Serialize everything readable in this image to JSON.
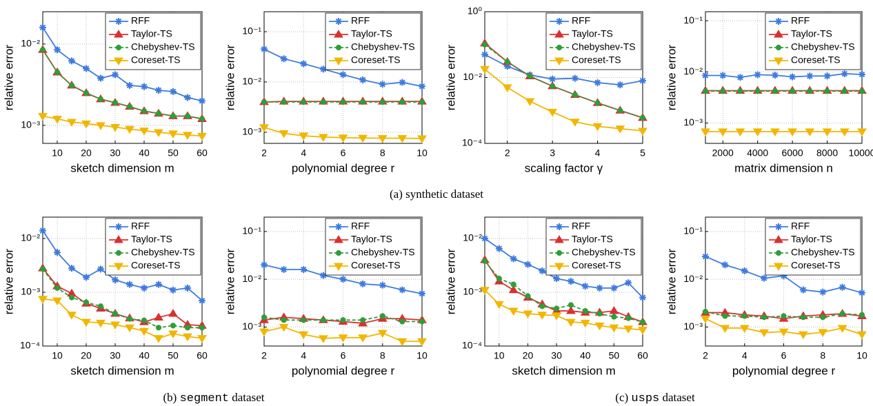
{
  "chart_data": [
    {
      "type": "line",
      "xlabel": "sketch dimension m",
      "ylabel": "relative error",
      "log_y": true,
      "grid": true,
      "legend": "upper right",
      "x": [
        5,
        10,
        15,
        20,
        25,
        30,
        35,
        40,
        45,
        50,
        55,
        60
      ],
      "xlim": [
        5,
        60
      ],
      "xticks": [
        10,
        20,
        30,
        40,
        50,
        60
      ],
      "ylim": [
        0.0006,
        0.025
      ],
      "yticks": [
        {
          "value": 0.001,
          "label": "10⁻³"
        },
        {
          "value": 0.01,
          "label": "10⁻²"
        }
      ],
      "series": [
        {
          "name": "RFF",
          "color": "#3d7be0",
          "marker": "star",
          "values": [
            0.016,
            0.0085,
            0.0062,
            0.005,
            0.0038,
            0.0042,
            0.0031,
            0.003,
            0.0027,
            0.0026,
            0.0022,
            0.002
          ]
        },
        {
          "name": "Taylor-TS",
          "color": "#d93030",
          "marker": "tri-up",
          "values": [
            0.0085,
            0.0045,
            0.0031,
            0.0025,
            0.0021,
            0.0019,
            0.0017,
            0.0015,
            0.0014,
            0.0013,
            0.0013,
            0.0012
          ]
        },
        {
          "name": "Chebyshev-TS",
          "color": "#2e9e3a",
          "marker": "circle",
          "dash": true,
          "values": [
            0.0085,
            0.0045,
            0.0031,
            0.0025,
            0.0021,
            0.0019,
            0.0017,
            0.0015,
            0.0014,
            0.0013,
            0.0013,
            0.0012
          ]
        },
        {
          "name": "Coreset-TS",
          "color": "#f2b600",
          "marker": "tri-down",
          "values": [
            0.0013,
            0.0012,
            0.0011,
            0.00105,
            0.001,
            0.00095,
            0.0009,
            0.00086,
            0.00082,
            0.00079,
            0.00076,
            0.00074
          ]
        }
      ]
    },
    {
      "type": "line",
      "xlabel": "polynomial degree r",
      "ylabel": "relative error",
      "log_y": true,
      "grid": true,
      "legend": "upper right",
      "x": [
        2,
        3,
        4,
        5,
        6,
        7,
        8,
        9,
        10
      ],
      "xlim": [
        2,
        10
      ],
      "xticks": [
        2,
        4,
        6,
        8,
        10
      ],
      "ylim": [
        0.0006,
        0.25
      ],
      "yticks": [
        {
          "value": 0.001,
          "label": "10⁻³"
        },
        {
          "value": 0.01,
          "label": "10⁻²"
        },
        {
          "value": 0.1,
          "label": "10⁻¹"
        }
      ],
      "series": [
        {
          "name": "RFF",
          "color": "#3d7be0",
          "marker": "star",
          "values": [
            0.045,
            0.029,
            0.023,
            0.018,
            0.014,
            0.011,
            0.009,
            0.0098,
            0.0082
          ]
        },
        {
          "name": "Taylor-TS",
          "color": "#d93030",
          "marker": "tri-up",
          "values": [
            0.004,
            0.0041,
            0.0041,
            0.0041,
            0.0041,
            0.0041,
            0.0041,
            0.0041,
            0.0041
          ]
        },
        {
          "name": "Chebyshev-TS",
          "color": "#2e9e3a",
          "marker": "circle",
          "dash": true,
          "values": [
            0.004,
            0.004,
            0.004,
            0.004,
            0.004,
            0.004,
            0.004,
            0.004,
            0.004
          ]
        },
        {
          "name": "Coreset-TS",
          "color": "#f2b600",
          "marker": "tri-down",
          "values": [
            0.00125,
            0.00095,
            0.00085,
            0.0008,
            0.00078,
            0.00077,
            0.00076,
            0.00076,
            0.00075
          ]
        }
      ]
    },
    {
      "type": "line",
      "xlabel": "scaling factor γ",
      "ylabel": "relative error",
      "log_y": true,
      "grid": true,
      "legend": "upper right",
      "x": [
        1.5,
        2,
        2.5,
        3,
        3.5,
        4,
        4.5,
        5
      ],
      "xlim": [
        1.5,
        5
      ],
      "xticks": [
        2,
        3,
        4,
        5
      ],
      "ylim": [
        0.0001,
        1
      ],
      "yticks": [
        {
          "value": 0.0001,
          "label": "10⁻⁴"
        },
        {
          "value": 0.01,
          "label": "10⁻²"
        },
        {
          "value": 1,
          "label": "10⁰"
        }
      ],
      "series": [
        {
          "name": "RFF",
          "color": "#3d7be0",
          "marker": "star",
          "values": [
            0.05,
            0.022,
            0.012,
            0.009,
            0.0095,
            0.007,
            0.006,
            0.008
          ]
        },
        {
          "name": "Taylor-TS",
          "color": "#d93030",
          "marker": "tri-up",
          "values": [
            0.11,
            0.03,
            0.011,
            0.0055,
            0.003,
            0.0017,
            0.001,
            0.0006
          ]
        },
        {
          "name": "Chebyshev-TS",
          "color": "#2e9e3a",
          "marker": "circle",
          "dash": true,
          "values": [
            0.1,
            0.03,
            0.011,
            0.0055,
            0.003,
            0.0017,
            0.001,
            0.0006
          ]
        },
        {
          "name": "Coreset-TS",
          "color": "#f2b600",
          "marker": "tri-down",
          "values": [
            0.018,
            0.005,
            0.0019,
            0.0009,
            0.00045,
            0.00033,
            0.00028,
            0.00024
          ]
        }
      ]
    },
    {
      "type": "line",
      "xlabel": "matrix dimension n",
      "ylabel": "relative error",
      "log_y": true,
      "grid": true,
      "legend": "upper right",
      "x": [
        1000,
        2000,
        3000,
        4000,
        5000,
        6000,
        7000,
        8000,
        9000,
        10000
      ],
      "xlim": [
        1000,
        10000
      ],
      "xticks": [
        2000,
        4000,
        6000,
        8000,
        10000
      ],
      "ylim": [
        0.0004,
        0.15
      ],
      "yticks": [
        {
          "value": 0.001,
          "label": "10⁻³"
        },
        {
          "value": 0.01,
          "label": "10⁻²"
        },
        {
          "value": 0.1,
          "label": "10⁻¹"
        }
      ],
      "series": [
        {
          "name": "RFF",
          "color": "#3d7be0",
          "marker": "star",
          "values": [
            0.0085,
            0.0085,
            0.0078,
            0.0088,
            0.0086,
            0.008,
            0.0083,
            0.0083,
            0.0092,
            0.0089
          ]
        },
        {
          "name": "Taylor-TS",
          "color": "#d93030",
          "marker": "tri-up",
          "values": [
            0.0043,
            0.0043,
            0.0043,
            0.0043,
            0.0043,
            0.0043,
            0.0043,
            0.0043,
            0.0043,
            0.0043
          ]
        },
        {
          "name": "Chebyshev-TS",
          "color": "#2e9e3a",
          "marker": "circle",
          "dash": true,
          "values": [
            0.0042,
            0.0042,
            0.0042,
            0.0042,
            0.0042,
            0.0042,
            0.0042,
            0.0042,
            0.0042,
            0.0042
          ]
        },
        {
          "name": "Coreset-TS",
          "color": "#f2b600",
          "marker": "tri-down",
          "values": [
            0.00068,
            0.00068,
            0.00068,
            0.00068,
            0.00068,
            0.00068,
            0.00068,
            0.00068,
            0.00068,
            0.00068
          ]
        }
      ]
    },
    {
      "type": "line",
      "xlabel": "sketch dimension m",
      "ylabel": "relative error",
      "log_y": true,
      "grid": true,
      "legend": "upper right",
      "x": [
        5,
        10,
        15,
        20,
        25,
        30,
        35,
        40,
        45,
        50,
        55,
        60
      ],
      "xlim": [
        5,
        60
      ],
      "xticks": [
        10,
        20,
        30,
        40,
        50,
        60
      ],
      "ylim": [
        0.0001,
        0.025
      ],
      "yticks": [
        {
          "value": 0.0001,
          "label": "10⁻⁴"
        },
        {
          "value": 0.001,
          "label": "10⁻³"
        },
        {
          "value": 0.01,
          "label": "10⁻²"
        }
      ],
      "series": [
        {
          "name": "RFF",
          "color": "#3d7be0",
          "marker": "star",
          "values": [
            0.014,
            0.0055,
            0.0028,
            0.0019,
            0.0027,
            0.0017,
            0.0014,
            0.0012,
            0.0014,
            0.0011,
            0.0012,
            0.0007
          ]
        },
        {
          "name": "Taylor-TS",
          "color": "#d93030",
          "marker": "tri-up",
          "values": [
            0.0028,
            0.0013,
            0.00095,
            0.00062,
            0.0005,
            0.0004,
            0.00033,
            0.00028,
            0.00034,
            0.0004,
            0.00025,
            0.00024
          ]
        },
        {
          "name": "Chebyshev-TS",
          "color": "#2e9e3a",
          "marker": "circle",
          "dash": true,
          "values": [
            0.0027,
            0.0012,
            0.0008,
            0.00065,
            0.00055,
            0.0004,
            0.00032,
            0.0003,
            0.00022,
            0.00024,
            0.00022,
            0.00022
          ]
        },
        {
          "name": "Coreset-TS",
          "color": "#f2b600",
          "marker": "tri-down",
          "values": [
            0.00075,
            0.0007,
            0.00038,
            0.00028,
            0.00027,
            0.00025,
            0.00022,
            0.00019,
            0.00014,
            0.00017,
            0.00015,
            0.00014
          ]
        }
      ]
    },
    {
      "type": "line",
      "xlabel": "polynomial degree r",
      "ylabel": "relative error",
      "log_y": true,
      "grid": true,
      "legend": "upper right",
      "x": [
        2,
        3,
        4,
        5,
        6,
        7,
        8,
        9,
        10
      ],
      "xlim": [
        2,
        10
      ],
      "xticks": [
        2,
        4,
        6,
        8,
        10
      ],
      "ylim": [
        0.0004,
        0.2
      ],
      "yticks": [
        {
          "value": 0.001,
          "label": "10⁻³"
        },
        {
          "value": 0.01,
          "label": "10⁻²"
        },
        {
          "value": 0.1,
          "label": "10⁻¹"
        }
      ],
      "series": [
        {
          "name": "RFF",
          "color": "#3d7be0",
          "marker": "star",
          "values": [
            0.02,
            0.016,
            0.016,
            0.012,
            0.01,
            0.008,
            0.0075,
            0.006,
            0.005
          ]
        },
        {
          "name": "Taylor-TS",
          "color": "#d93030",
          "marker": "tri-up",
          "values": [
            0.0014,
            0.0016,
            0.0015,
            0.0014,
            0.0013,
            0.0012,
            0.0015,
            0.0015,
            0.0014
          ]
        },
        {
          "name": "Chebyshev-TS",
          "color": "#2e9e3a",
          "marker": "circle",
          "dash": true,
          "values": [
            0.0016,
            0.0014,
            0.0014,
            0.0014,
            0.0014,
            0.0014,
            0.0017,
            0.0013,
            0.0013
          ]
        },
        {
          "name": "Coreset-TS",
          "color": "#f2b600",
          "marker": "tri-down",
          "values": [
            0.0008,
            0.001,
            0.0007,
            0.00058,
            0.0006,
            0.0006,
            0.00075,
            0.0005,
            0.0005
          ]
        }
      ]
    },
    {
      "type": "line",
      "xlabel": "sketch dimension m",
      "ylabel": "relative error",
      "log_y": true,
      "grid": true,
      "legend": "upper right",
      "x": [
        5,
        10,
        15,
        20,
        25,
        30,
        35,
        40,
        45,
        50,
        55,
        60
      ],
      "xlim": [
        5,
        60
      ],
      "xticks": [
        10,
        20,
        30,
        40,
        50,
        60
      ],
      "ylim": [
        0.0001,
        0.025
      ],
      "yticks": [
        {
          "value": 0.0001,
          "label": "10⁻⁴"
        },
        {
          "value": 0.001,
          "label": "10⁻³"
        },
        {
          "value": 0.01,
          "label": "10⁻²"
        }
      ],
      "series": [
        {
          "name": "RFF",
          "color": "#3d7be0",
          "marker": "star",
          "values": [
            0.01,
            0.0065,
            0.0042,
            0.0033,
            0.0025,
            0.0018,
            0.0016,
            0.0013,
            0.0012,
            0.0012,
            0.0015,
            0.0008
          ]
        },
        {
          "name": "Taylor-TS",
          "color": "#d93030",
          "marker": "tri-up",
          "values": [
            0.004,
            0.0016,
            0.0011,
            0.0008,
            0.0006,
            0.00045,
            0.00045,
            0.00042,
            0.00042,
            0.00045,
            0.00035,
            0.00028
          ]
        },
        {
          "name": "Chebyshev-TS",
          "color": "#2e9e3a",
          "marker": "circle",
          "dash": true,
          "values": [
            0.0038,
            0.0018,
            0.0014,
            0.00085,
            0.00055,
            0.0005,
            0.00058,
            0.00045,
            0.0004,
            0.00035,
            0.00033,
            0.00028
          ]
        },
        {
          "name": "Coreset-TS",
          "color": "#f2b600",
          "marker": "tri-down",
          "values": [
            0.0011,
            0.0006,
            0.00045,
            0.0004,
            0.00038,
            0.00037,
            0.00028,
            0.00027,
            0.00024,
            0.00022,
            0.00021,
            0.0002
          ]
        }
      ]
    },
    {
      "type": "line",
      "xlabel": "polynomial degree r",
      "ylabel": "relative error",
      "log_y": true,
      "grid": true,
      "legend": "upper right",
      "x": [
        2,
        3,
        4,
        5,
        6,
        7,
        8,
        9,
        10
      ],
      "xlim": [
        2,
        10
      ],
      "xticks": [
        2,
        4,
        6,
        8,
        10
      ],
      "ylim": [
        0.0004,
        0.2
      ],
      "yticks": [
        {
          "value": 0.001,
          "label": "10⁻³"
        },
        {
          "value": 0.01,
          "label": "10⁻²"
        },
        {
          "value": 0.1,
          "label": "10⁻¹"
        }
      ],
      "series": [
        {
          "name": "RFF",
          "color": "#3d7be0",
          "marker": "star",
          "values": [
            0.03,
            0.02,
            0.015,
            0.0105,
            0.0118,
            0.006,
            0.0054,
            0.0068,
            0.0052
          ]
        },
        {
          "name": "Taylor-TS",
          "color": "#d93030",
          "marker": "tri-up",
          "values": [
            0.002,
            0.002,
            0.0018,
            0.0017,
            0.0015,
            0.0017,
            0.0018,
            0.0019,
            0.0017
          ]
        },
        {
          "name": "Chebyshev-TS",
          "color": "#2e9e3a",
          "marker": "circle",
          "dash": true,
          "values": [
            0.0021,
            0.0017,
            0.0017,
            0.0016,
            0.0017,
            0.0016,
            0.0016,
            0.0019,
            0.0018
          ]
        },
        {
          "name": "Coreset-TS",
          "color": "#f2b600",
          "marker": "tri-down",
          "values": [
            0.0015,
            0.00095,
            0.00095,
            0.00077,
            0.0008,
            0.0007,
            0.00078,
            0.00095,
            0.0007
          ]
        }
      ]
    }
  ],
  "captions": [
    {
      "tag": "(a)",
      "text": "synthetic dataset"
    },
    {
      "tag": "(b)",
      "name": "segment",
      "text": "dataset"
    },
    {
      "tag": "(c)",
      "name": "usps",
      "text": "dataset"
    }
  ]
}
